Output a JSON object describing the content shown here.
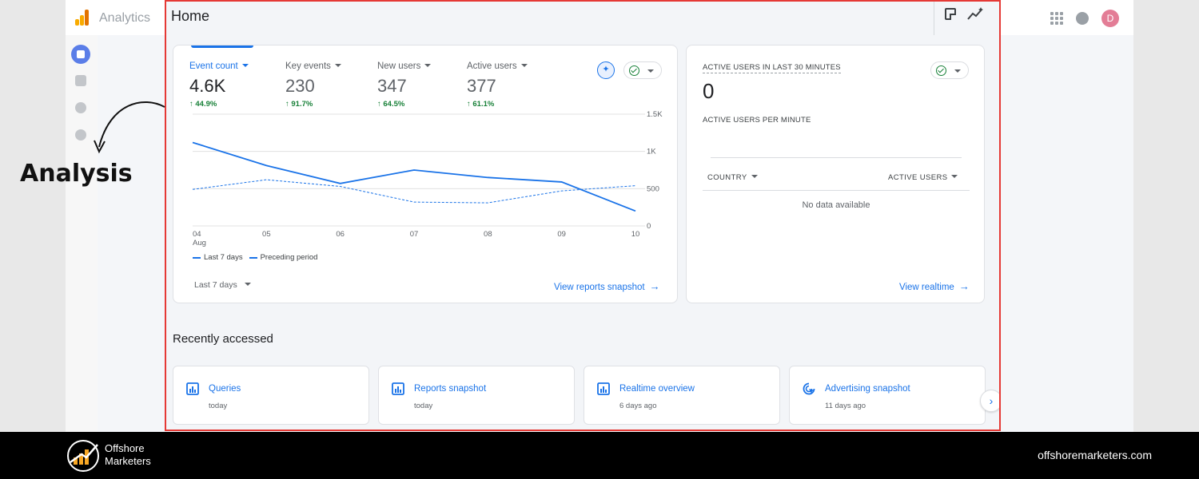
{
  "app": {
    "title": "Analytics",
    "avatar_letter": "D"
  },
  "page": {
    "title": "Home"
  },
  "metrics": [
    {
      "label": "Event count",
      "value": "4.6K",
      "delta": "↑ 44.9%"
    },
    {
      "label": "Key events",
      "value": "230",
      "delta": "↑ 91.7%"
    },
    {
      "label": "New users",
      "value": "347",
      "delta": "↑ 64.5%"
    },
    {
      "label": "Active users",
      "value": "377",
      "delta": "↑ 61.1%"
    }
  ],
  "chart_data": {
    "type": "line",
    "x": [
      "04",
      "05",
      "06",
      "07",
      "08",
      "09",
      "10"
    ],
    "x_sub": "Aug",
    "yticks": [
      "0",
      "500",
      "1K",
      "1.5K"
    ],
    "ylim": [
      0,
      1500
    ],
    "series": [
      {
        "name": "Last 7 days",
        "style": "solid",
        "values": [
          1120,
          810,
          570,
          750,
          650,
          590,
          200
        ]
      },
      {
        "name": "Preceding period",
        "style": "dashed",
        "values": [
          490,
          620,
          530,
          320,
          310,
          470,
          540
        ]
      }
    ],
    "colors": {
      "line": "#1a73e8",
      "grid": "#e0e0e0"
    }
  },
  "main_card": {
    "date_range": "Last 7 days",
    "link": "View reports snapshot"
  },
  "realtime": {
    "title": "ACTIVE USERS IN LAST 30 MINUTES",
    "value": "0",
    "subtitle": "ACTIVE USERS PER MINUTE",
    "col_country": "COUNTRY",
    "col_users": "ACTIVE USERS",
    "empty": "No data available",
    "link": "View realtime"
  },
  "recent": {
    "title": "Recently accessed",
    "items": [
      {
        "name": "Queries",
        "time": "today",
        "icon": "bar-chart-icon"
      },
      {
        "name": "Reports snapshot",
        "time": "today",
        "icon": "bar-chart-icon"
      },
      {
        "name": "Realtime overview",
        "time": "6 days ago",
        "icon": "bar-chart-icon"
      },
      {
        "name": "Advertising snapshot",
        "time": "11 days ago",
        "icon": "target-cursor-icon"
      }
    ]
  },
  "annotation": {
    "label": "Analysis"
  },
  "footer": {
    "brand_line1": "Offshore",
    "brand_line2": "Marketers",
    "url": "offshoremarketers.com"
  },
  "colors": {
    "accent": "#1a73e8",
    "positive": "#188038",
    "highlight_border": "#e53935"
  }
}
